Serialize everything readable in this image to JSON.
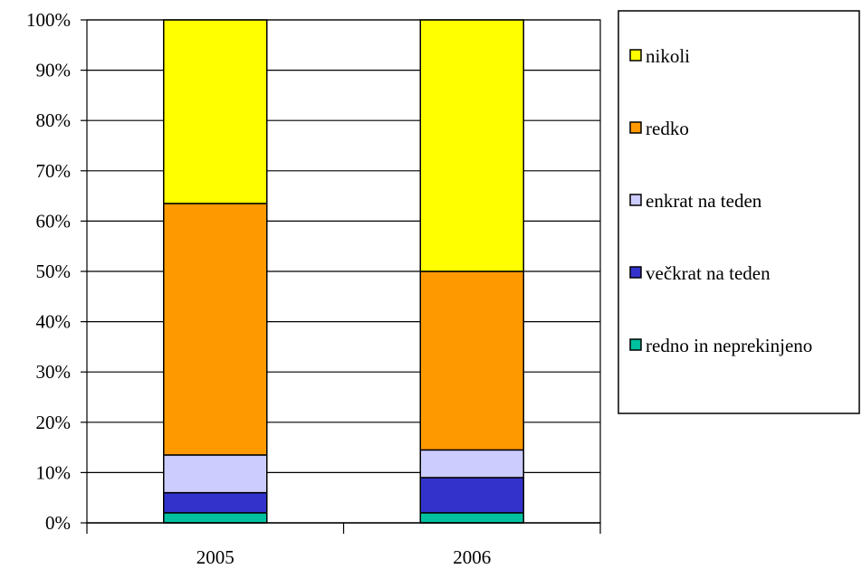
{
  "chart_data": {
    "type": "bar",
    "stacked": "percent",
    "categories": [
      "2005",
      "2006"
    ],
    "series": [
      {
        "name": "redno in neprekinjeno",
        "values": [
          2,
          2
        ],
        "color": "#00c0a0"
      },
      {
        "name": "večkrat na teden",
        "values": [
          4,
          7
        ],
        "color": "#3333cc"
      },
      {
        "name": "enkrat na teden",
        "values": [
          7.5,
          5.5
        ],
        "color": "#ccccff"
      },
      {
        "name": "redko",
        "values": [
          50,
          35.5
        ],
        "color": "#ff9900"
      },
      {
        "name": "nikoli",
        "values": [
          36.5,
          50
        ],
        "color": "#ffff00"
      }
    ],
    "legend_order": [
      "nikoli",
      "redko",
      "enkrat na teden",
      "večkrat na teden",
      "redno in neprekinjeno"
    ],
    "y_ticks": [
      "0%",
      "10%",
      "20%",
      "30%",
      "40%",
      "50%",
      "60%",
      "70%",
      "80%",
      "90%",
      "100%"
    ],
    "ylim": [
      0,
      100
    ],
    "grid": true,
    "legend_position": "right"
  }
}
